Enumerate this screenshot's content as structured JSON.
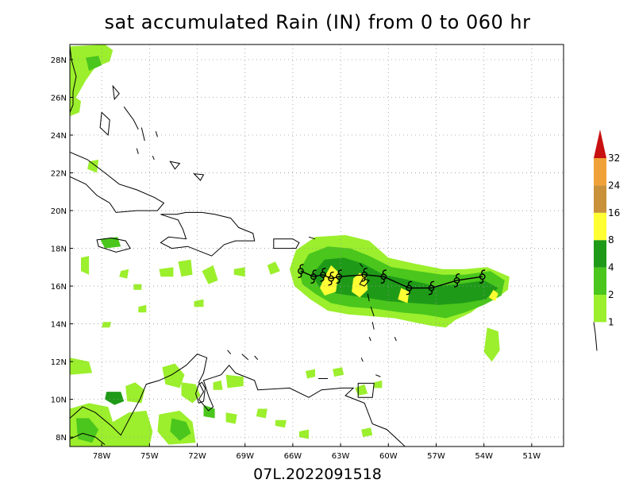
{
  "title": "sat accumulated Rain (IN) from 0 to 060 hr",
  "footer": "07L.2022091518",
  "map": {
    "lon_range": [
      -80.0,
      -49.0
    ],
    "lat_range": [
      7.5,
      28.8
    ],
    "lat_labels": [
      "28N",
      "26N",
      "24N",
      "22N",
      "20N",
      "18N",
      "16N",
      "14N",
      "12N",
      "10N",
      "8N"
    ],
    "lat_values": [
      28,
      26,
      24,
      22,
      20,
      18,
      16,
      14,
      12,
      10,
      8
    ],
    "lon_labels": [
      "78W",
      "75W",
      "72W",
      "69W",
      "66W",
      "63W",
      "60W",
      "57W",
      "54W",
      "51W"
    ],
    "lon_values": [
      -78,
      -75,
      -72,
      -69,
      -66,
      -63,
      -60,
      -57,
      -54,
      -51
    ],
    "grid": "dotted",
    "coastline_color": "#000000"
  },
  "colorbar": {
    "labels": [
      "1",
      "2",
      "4",
      "8",
      "16",
      "24",
      "32"
    ],
    "colors": [
      "#9bef2c",
      "#4ac61c",
      "#1f9a18",
      "#ffff33",
      "#c8913a",
      "#f0a238"
    ],
    "top_color": "#c81010",
    "placement": "right"
  },
  "storm_track": {
    "symbol": "hurricane-symbol",
    "color": "#000000",
    "points": [
      [
        -54.1,
        16.5
      ],
      [
        -55.7,
        16.3
      ],
      [
        -57.3,
        15.9
      ],
      [
        -58.7,
        15.9
      ],
      [
        -60.3,
        16.5
      ],
      [
        -61.5,
        16.6
      ],
      [
        -63.1,
        16.5
      ],
      [
        -63.6,
        16.4
      ],
      [
        -64.1,
        16.6
      ],
      [
        -64.7,
        16.5
      ],
      [
        -65.5,
        16.8
      ]
    ]
  },
  "rain_colors": {
    "light": "#9bef2c",
    "medium": "#4ac61c",
    "heavy": "#1f9a18",
    "extreme": "#ffff33"
  }
}
